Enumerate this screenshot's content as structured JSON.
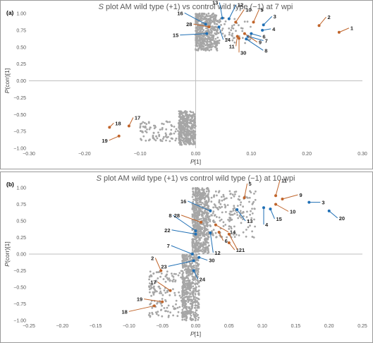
{
  "chart_data": [
    {
      "type": "scatter",
      "panel_label": "(a)",
      "title_italic": "S",
      "title_rest": " plot AM wild type (+1) vs control wild type (−1) at 7 wpi",
      "xlabel": "P[1]",
      "ylabel": "P(corr)[1]",
      "xlim": [
        -0.3,
        0.3
      ],
      "ylim": [
        -1.0,
        1.0
      ],
      "xticks": [
        -0.3,
        -0.2,
        -0.1,
        0,
        0.1,
        0.2,
        0.3
      ],
      "xtick_labels": [
        "−0.30",
        "−0.20",
        "−0.10",
        "0.00",
        "0.10",
        "0.20",
        "0.30"
      ],
      "yticks": [
        -1.0,
        -0.75,
        -0.5,
        -0.25,
        0,
        0.25,
        0.5,
        0.75,
        1.0
      ],
      "ytick_labels": [
        "−1.00",
        "−0.75",
        "−0.50",
        "−0.25",
        "0.00",
        "0.25",
        "0.50",
        "0.75",
        "1.00"
      ],
      "grid": false,
      "legend": "none",
      "colors": {
        "points": "#a6a6a6",
        "positive": "#1f6fb5",
        "negative": "#c0642a",
        "axis": "#bfbfbf"
      },
      "clusters": [
        {
          "x_range": [
            0.0,
            0.04
          ],
          "y_range": [
            0.45,
            1.0
          ],
          "n": 420
        },
        {
          "x_range": [
            0.0,
            0.1
          ],
          "y_range": [
            0.55,
            0.95
          ],
          "n": 120
        },
        {
          "x_range": [
            -0.03,
            0.0
          ],
          "y_range": [
            -0.95,
            -0.45
          ],
          "n": 380
        },
        {
          "x_range": [
            -0.1,
            -0.03
          ],
          "y_range": [
            -0.9,
            -0.6
          ],
          "n": 90
        }
      ],
      "annotations": [
        {
          "label": "1",
          "x": 0.258,
          "y": 0.72,
          "color": "negative"
        },
        {
          "label": "2",
          "x": 0.222,
          "y": 0.82,
          "color": "negative"
        },
        {
          "label": "3",
          "x": 0.122,
          "y": 0.83,
          "color": "positive"
        },
        {
          "label": "4",
          "x": 0.12,
          "y": 0.75,
          "color": "positive"
        },
        {
          "label": "5",
          "x": 0.104,
          "y": 0.87,
          "color": "negative"
        },
        {
          "label": "6",
          "x": 0.1,
          "y": 0.7,
          "color": "positive"
        },
        {
          "label": "7",
          "x": 0.094,
          "y": 0.66,
          "color": "positive"
        },
        {
          "label": "8",
          "x": 0.091,
          "y": 0.62,
          "color": "positive"
        },
        {
          "label": "9",
          "x": 0.088,
          "y": 0.7,
          "color": "negative"
        },
        {
          "label": "10",
          "x": 0.072,
          "y": 0.87,
          "color": "negative"
        },
        {
          "label": "11",
          "x": 0.075,
          "y": 0.66,
          "color": "negative"
        },
        {
          "label": "12",
          "x": 0.06,
          "y": 0.92,
          "color": "positive"
        },
        {
          "label": "13",
          "x": 0.048,
          "y": 0.93,
          "color": "positive"
        },
        {
          "label": "14",
          "x": 0.042,
          "y": 0.8,
          "color": "positive"
        },
        {
          "label": "15",
          "x": 0.02,
          "y": 0.7,
          "color": "positive"
        },
        {
          "label": "16",
          "x": 0.018,
          "y": 0.84,
          "color": "positive"
        },
        {
          "label": "17",
          "x": -0.12,
          "y": -0.67,
          "color": "negative"
        },
        {
          "label": "18",
          "x": -0.155,
          "y": -0.69,
          "color": "negative"
        },
        {
          "label": "19",
          "x": -0.138,
          "y": -0.82,
          "color": "negative"
        },
        {
          "label": "28",
          "x": 0.024,
          "y": 0.8,
          "color": "negative"
        },
        {
          "label": "30",
          "x": 0.078,
          "y": 0.63,
          "color": "negative"
        }
      ]
    },
    {
      "type": "scatter",
      "panel_label": "(b)",
      "title_italic": "S",
      "title_rest": " plot AM wild type (+1) vs control wild type (−1) at 10 wpi",
      "xlabel": "P[1]",
      "ylabel": "P(corr)[1]",
      "xlim": [
        -0.25,
        0.25
      ],
      "ylim": [
        -1.0,
        1.0
      ],
      "xticks": [
        -0.25,
        -0.2,
        -0.15,
        -0.1,
        -0.05,
        0,
        0.05,
        0.1,
        0.15,
        0.2,
        0.25
      ],
      "xtick_labels": [
        "−0.25",
        "−0.20",
        "−0.15",
        "−0.10",
        "−0.05",
        "0.00",
        "0.05",
        "0.10",
        "0.15",
        "0.20",
        "0.25"
      ],
      "yticks": [
        -1.0,
        -0.75,
        -0.5,
        -0.25,
        0,
        0.25,
        0.5,
        0.75,
        1.0
      ],
      "ytick_labels": [
        "−1.00",
        "−0.75",
        "−0.50",
        "−0.25",
        "0.00",
        "0.25",
        "0.50",
        "0.75",
        "1.00"
      ],
      "grid": false,
      "legend": "none",
      "colors": {
        "points": "#a6a6a6",
        "positive": "#1f6fb5",
        "negative": "#c0642a",
        "axis": "#bfbfbf"
      },
      "clusters": [
        {
          "x_range": [
            -0.005,
            0.02
          ],
          "y_range": [
            0.0,
            1.0
          ],
          "n": 520
        },
        {
          "x_range": [
            0.0,
            0.09
          ],
          "y_range": [
            0.25,
            0.95
          ],
          "n": 260
        },
        {
          "x_range": [
            -0.02,
            0.005
          ],
          "y_range": [
            -1.0,
            0.0
          ],
          "n": 480
        },
        {
          "x_range": [
            -0.07,
            -0.01
          ],
          "y_range": [
            -0.95,
            -0.25
          ],
          "n": 160
        }
      ],
      "annotations": [
        {
          "label": "1",
          "x": 0.05,
          "y": 0.17,
          "color": "negative"
        },
        {
          "label": "2",
          "x": -0.052,
          "y": -0.25,
          "color": "negative"
        },
        {
          "label": "3",
          "x": 0.17,
          "y": 0.78,
          "color": "positive"
        },
        {
          "label": "4",
          "x": 0.102,
          "y": 0.7,
          "color": "positive"
        },
        {
          "label": "5",
          "x": 0.073,
          "y": 0.85,
          "color": "negative"
        },
        {
          "label": "6",
          "x": 0.035,
          "y": 0.33,
          "color": "negative"
        },
        {
          "label": "7",
          "x": -0.005,
          "y": 0.0,
          "color": "positive"
        },
        {
          "label": "8",
          "x": 0.0,
          "y": 0.35,
          "color": "positive"
        },
        {
          "label": "9",
          "x": 0.13,
          "y": 0.83,
          "color": "negative"
        },
        {
          "label": "10",
          "x": 0.12,
          "y": 0.75,
          "color": "negative"
        },
        {
          "label": "11",
          "x": 0.12,
          "y": 0.88,
          "color": "negative"
        },
        {
          "label": "12",
          "x": 0.022,
          "y": 0.32,
          "color": "positive"
        },
        {
          "label": "13",
          "x": 0.062,
          "y": 0.67,
          "color": "positive"
        },
        {
          "label": "14",
          "x": 0.03,
          "y": 0.44,
          "color": "negative"
        },
        {
          "label": "15",
          "x": 0.112,
          "y": 0.68,
          "color": "positive"
        },
        {
          "label": "16",
          "x": 0.022,
          "y": 0.65,
          "color": "positive"
        },
        {
          "label": "17",
          "x": -0.038,
          "y": -0.55,
          "color": "negative"
        },
        {
          "label": "18",
          "x": -0.062,
          "y": -0.78,
          "color": "negative"
        },
        {
          "label": "19",
          "x": -0.05,
          "y": -0.72,
          "color": "negative"
        },
        {
          "label": "20",
          "x": 0.2,
          "y": 0.65,
          "color": "positive"
        },
        {
          "label": "21",
          "x": 0.05,
          "y": 0.3,
          "color": "negative"
        },
        {
          "label": "22",
          "x": 0.0,
          "y": 0.3,
          "color": "positive"
        },
        {
          "label": "23",
          "x": -0.003,
          "y": -0.1,
          "color": "positive"
        },
        {
          "label": "24",
          "x": -0.003,
          "y": -0.25,
          "color": "positive"
        },
        {
          "label": "28",
          "x": 0.008,
          "y": 0.48,
          "color": "negative"
        },
        {
          "label": "30",
          "x": 0.005,
          "y": -0.05,
          "color": "positive"
        }
      ]
    }
  ]
}
